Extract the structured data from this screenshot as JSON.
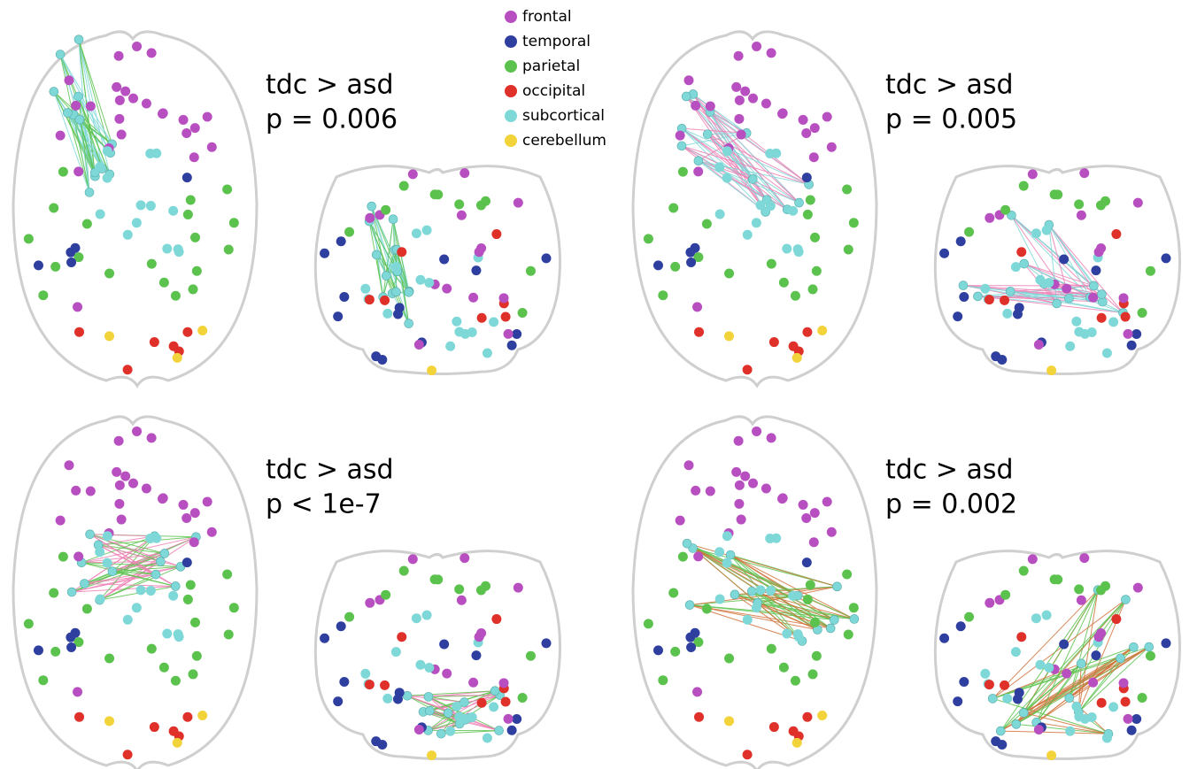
{
  "legend": [
    {
      "label": "frontal",
      "color": "#b84fc0"
    },
    {
      "label": "temporal",
      "color": "#2e3fa0"
    },
    {
      "label": "parietal",
      "color": "#5cc24e"
    },
    {
      "label": "occipital",
      "color": "#e0302a"
    },
    {
      "label": "subcortical",
      "color": "#7fd8d8"
    },
    {
      "label": "cerebellum",
      "color": "#f2d33a"
    }
  ],
  "panels": [
    {
      "comparison": "tdc > asd",
      "p_value": "p = 0.006"
    },
    {
      "comparison": "tdc > asd",
      "p_value": "p = 0.005"
    },
    {
      "comparison": "tdc > asd",
      "p_value": "p < 1e-7"
    },
    {
      "comparison": "tdc > asd",
      "p_value": "p = 0.002"
    }
  ]
}
